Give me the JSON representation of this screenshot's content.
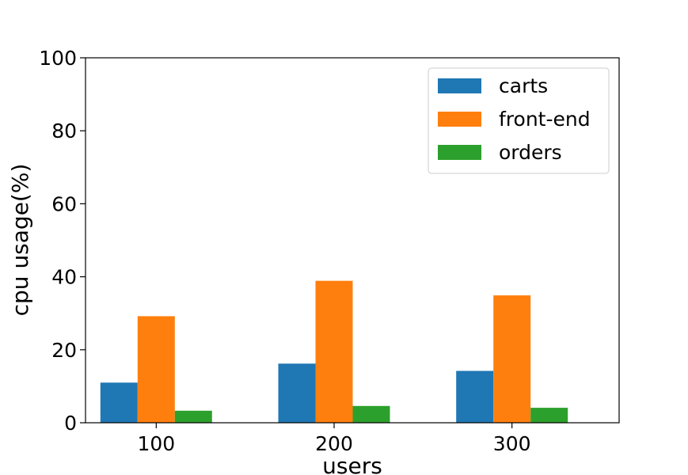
{
  "chart_data": {
    "type": "bar",
    "categories": [
      "100",
      "200",
      "300"
    ],
    "series": [
      {
        "name": "carts",
        "values": [
          11,
          16.2,
          14.2
        ],
        "color": "#1f77b4"
      },
      {
        "name": "front-end",
        "values": [
          29.2,
          38.9,
          34.9
        ],
        "color": "#ff7f0e"
      },
      {
        "name": "orders",
        "values": [
          3.3,
          4.6,
          4.1
        ],
        "color": "#2ca02c"
      }
    ],
    "xlabel": "users",
    "ylabel": "cpu usage(%)",
    "ylim": [
      0,
      100
    ],
    "yticks": [
      "0",
      "20",
      "40",
      "60",
      "80",
      "100"
    ],
    "grid": false,
    "legend_position": "top-right"
  }
}
